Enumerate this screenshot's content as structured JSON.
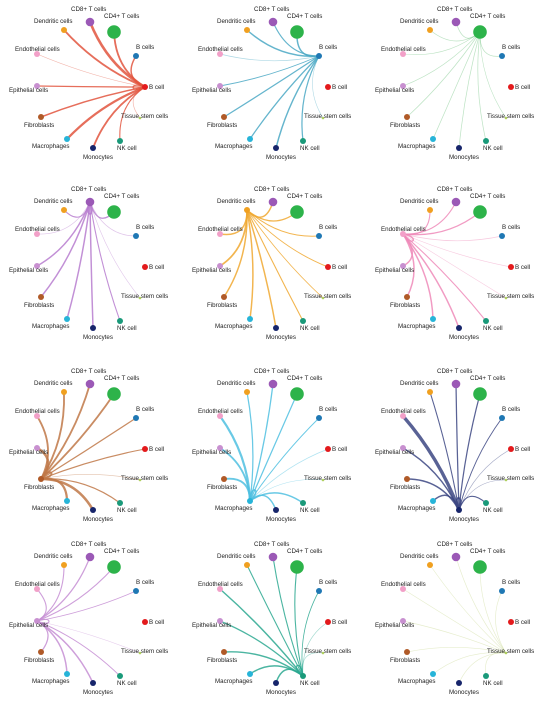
{
  "figure": {
    "cell_types": [
      {
        "id": "cd8",
        "label": "CD8+ T cells",
        "color": "#9b59b6",
        "size": "medium"
      },
      {
        "id": "cd4",
        "label": "CD4+ T cells",
        "color": "#2db34a",
        "size": "large"
      },
      {
        "id": "dend",
        "label": "Dendritic cells",
        "color": "#f0a020",
        "size": "small"
      },
      {
        "id": "bcells",
        "label": "B cells",
        "color": "#1f78b4",
        "size": "small"
      },
      {
        "id": "endo",
        "label": "Endothelial cells",
        "color": "#f2a0c8",
        "size": "small"
      },
      {
        "id": "epi",
        "label": "Epithelial cells",
        "color": "#c890d0",
        "size": "small"
      },
      {
        "id": "bcell",
        "label": "B cell",
        "color": "#e31a1c",
        "size": "small"
      },
      {
        "id": "tsc",
        "label": "Tissue stem cells",
        "color": "#b0d060",
        "size": "tiny"
      },
      {
        "id": "fib",
        "label": "Fibroblasts",
        "color": "#b05a28",
        "size": "small"
      },
      {
        "id": "mac",
        "label": "Macrophages",
        "color": "#27b4d8",
        "size": "small"
      },
      {
        "id": "nk",
        "label": "NK cell",
        "color": "#1a9a7a",
        "size": "small"
      },
      {
        "id": "mono",
        "label": "Monocytes",
        "color": "#17256b",
        "size": "small"
      }
    ],
    "panels": [
      {
        "source": "bcell",
        "edge_color": "#e2553e"
      },
      {
        "source": "bcells",
        "edge_color": "#4aa8c4"
      },
      {
        "source": "cd4",
        "edge_color": "#6cc07c"
      },
      {
        "source": "cd8",
        "edge_color": "#b77ccf"
      },
      {
        "source": "dend",
        "edge_color": "#f0a830"
      },
      {
        "source": "endo",
        "edge_color": "#ee8ab8"
      },
      {
        "source": "fib",
        "edge_color": "#c07848"
      },
      {
        "source": "mac",
        "edge_color": "#4fc0e0"
      },
      {
        "source": "mono",
        "edge_color": "#3c4682"
      },
      {
        "source": "epi",
        "edge_color": "#c58ed4"
      },
      {
        "source": "nk",
        "edge_color": "#2ba890"
      },
      {
        "source": "tsc",
        "edge_color": "#c8d890"
      }
    ],
    "edge_weights": {
      "bcell": {
        "cd8": 3,
        "cd4": 2,
        "dend": 2,
        "bcells": 1.5,
        "endo": 0.4,
        "epi": 1.2,
        "fib": 1.5,
        "mac": 2.5,
        "mono": 2,
        "nk": 1,
        "tsc": 0.4,
        "bcell": 1
      },
      "bcells": {
        "cd8": 1,
        "cd4": 1.5,
        "dend": 1.5,
        "endo": 0.4,
        "epi": 0.8,
        "fib": 1.2,
        "mac": 1.2,
        "mono": 1.5,
        "nk": 1.2,
        "tsc": 0.3
      },
      "cd4": {
        "cd8": 0.5,
        "dend": 0.5,
        "bcells": 0.5,
        "endo": 0.3,
        "epi": 0.3,
        "fib": 0.5,
        "mac": 0.5,
        "mono": 0.5,
        "nk": 0.5,
        "tsc": 0.3
      },
      "cd8": {
        "cd4": 1.2,
        "dend": 1,
        "bcells": 0.5,
        "endo": 0.5,
        "epi": 1.5,
        "fib": 1.5,
        "mac": 1.5,
        "mono": 1.5,
        "nk": 1,
        "tsc": 0.3,
        "cd8": 1.5
      },
      "dend": {
        "cd8": 1.5,
        "cd4": 1.2,
        "bcells": 0.8,
        "endo": 1.5,
        "epi": 1.8,
        "fib": 1.5,
        "mac": 1.5,
        "mono": 1.5,
        "nk": 1,
        "bcell": 0.8,
        "tsc": 0.6
      },
      "endo": {
        "cd8": 1,
        "cd4": 1.2,
        "dend": 1,
        "bcells": 0.5,
        "epi": 1.5,
        "fib": 1.5,
        "mac": 1.5,
        "mono": 1.5,
        "nk": 1,
        "bcell": 0.4,
        "tsc": 0.3,
        "endo": 1.5
      },
      "fib": {
        "cd8": 2,
        "cd4": 2,
        "dend": 2,
        "bcells": 1.2,
        "endo": 2,
        "epi": 3,
        "mac": 2.5,
        "mono": 3,
        "nk": 1.2,
        "bcell": 1,
        "tsc": 0.4,
        "fib": 2
      },
      "mac": {
        "cd8": 1.2,
        "cd4": 1.2,
        "dend": 1.2,
        "bcells": 0.8,
        "endo": 2.5,
        "epi": 2,
        "fib": 2,
        "mono": 1.5,
        "nk": 1.5,
        "bcell": 0.5,
        "tsc": 0.3,
        "mac": 1.5
      },
      "mono": {
        "cd8": 1.2,
        "cd4": 1.2,
        "dend": 1,
        "bcells": 0.8,
        "endo": 4,
        "epi": 1.5,
        "fib": 1.5,
        "mac": 1.5,
        "nk": 1,
        "bcell": 0.5,
        "tsc": 0.3,
        "mono": 2
      },
      "epi": {
        "cd8": 1.2,
        "cd4": 1,
        "dend": 1,
        "bcells": 0.6,
        "endo": 1,
        "fib": 1.2,
        "mac": 1.5,
        "mono": 1.5,
        "nk": 0.8,
        "tsc": 0.3,
        "epi": 1
      },
      "nk": {
        "cd8": 1,
        "cd4": 1,
        "dend": 1,
        "bcells": 0.6,
        "endo": 1.5,
        "epi": 1.2,
        "fib": 1.5,
        "mac": 1.5,
        "mono": 1.5,
        "bcell": 0.4,
        "tsc": 0.3,
        "nk": 1
      },
      "tsc": {
        "cd8": 0.4,
        "cd4": 0.4,
        "dend": 0.4,
        "bcells": 0.4,
        "endo": 0.4,
        "epi": 0.4,
        "fib": 0.4,
        "mac": 0.4,
        "mono": 0.4,
        "nk": 0.4
      }
    }
  }
}
